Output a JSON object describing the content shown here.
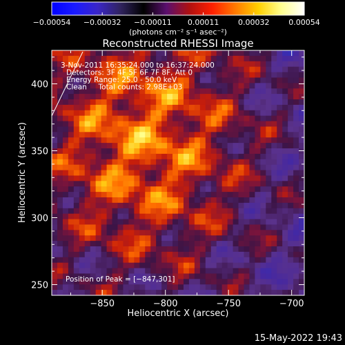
{
  "colorbar": {
    "ticks": [
      "−0.00054",
      "−0.00032",
      "−0.00011",
      "0.00011",
      "0.00032",
      "0.00054"
    ],
    "units": "(photons cm⁻² s⁻¹ asec⁻²)",
    "stops": [
      "#0000ff",
      "#1a1aff",
      "#3a26c8",
      "#30235e",
      "#000000",
      "#5a0f6e",
      "#b01010",
      "#ff2000",
      "#ff7a00",
      "#ffd000",
      "#ffff90",
      "#ffffff"
    ]
  },
  "plot": {
    "title": "Reconstructed RHESSI Image",
    "xlabel": "Heliocentric X (arcsec)",
    "ylabel": "Heliocentric Y (arcsec)",
    "x_ticks": [
      "−850",
      "−800",
      "−750",
      "−700"
    ],
    "y_ticks": [
      "250",
      "300",
      "350",
      "400"
    ],
    "xlim": [
      -890,
      -690
    ],
    "ylim": [
      242,
      425
    ]
  },
  "info": {
    "line1": "3-Nov-2011 16:35:24.000 to 16:37:24.000",
    "line2": "Detectors: 3F 4F 5F 6F 7F 8F, Att 0",
    "line3": "Energy Range: 25.0 - 50.0 keV",
    "line4": "Clean     Total counts: 2.98E+03"
  },
  "peak": "Position of Peak = [−847,301]",
  "footer_date": "15-May-2022 19:43"
}
